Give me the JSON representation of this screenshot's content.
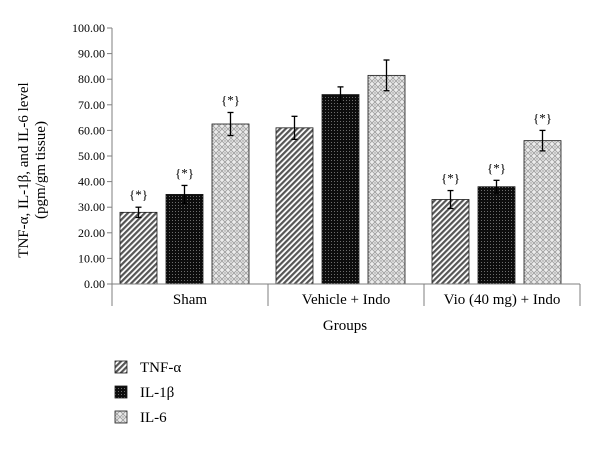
{
  "chart_data": {
    "type": "bar",
    "title": "",
    "xlabel": "Groups",
    "ylabel": [
      "TNF-α, IL-1β, and IL-6 level",
      "(pgm/gm tissue)"
    ],
    "ylim": [
      0,
      100
    ],
    "ytick_step": 10,
    "ytick_labels": [
      "0.00",
      "10.00",
      "20.00",
      "30.00",
      "40.00",
      "50.00",
      "60.00",
      "70.00",
      "80.00",
      "90.00",
      "100.00"
    ],
    "categories": [
      "Sham",
      "Vehicle + Indo",
      "Vio (40 mg) + Indo"
    ],
    "series": [
      {
        "name": "TNF-α",
        "pattern": "diagonal-hatch",
        "values": [
          28.0,
          61.0,
          33.0
        ],
        "errors": [
          2.0,
          4.5,
          3.5
        ],
        "significance": [
          "{*}",
          "",
          "{*}"
        ]
      },
      {
        "name": "IL-1β",
        "pattern": "black-dotted",
        "values": [
          35.0,
          74.0,
          38.0
        ],
        "errors": [
          3.5,
          3.0,
          2.5
        ],
        "significance": [
          "{*}",
          "",
          "{*}"
        ]
      },
      {
        "name": "IL-6",
        "pattern": "light-lattice",
        "values": [
          62.5,
          81.5,
          56.0
        ],
        "errors": [
          4.5,
          6.0,
          4.0
        ],
        "significance": [
          "{*}",
          "",
          "{*}"
        ]
      }
    ],
    "legend": {
      "placement": "bottom-left",
      "orientation": "vertical"
    },
    "grid": false
  }
}
